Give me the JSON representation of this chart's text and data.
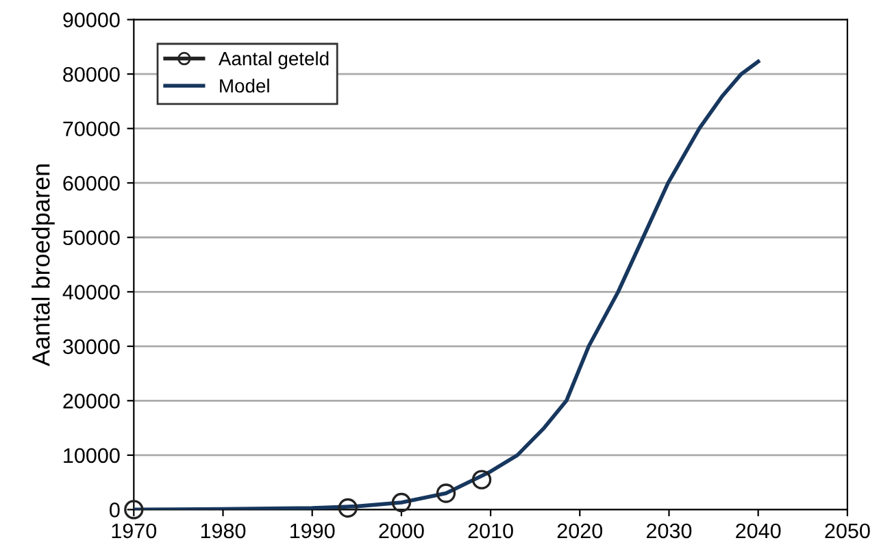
{
  "chart_data": {
    "type": "line",
    "ylabel": "Aantal broedparen",
    "xlim": [
      1970,
      2050
    ],
    "xticks": [
      1970,
      1980,
      1990,
      2000,
      2010,
      2020,
      2030,
      2040,
      2050
    ],
    "ylim": [
      0,
      90000
    ],
    "yticks": [
      0,
      10000,
      20000,
      30000,
      40000,
      50000,
      60000,
      70000,
      80000,
      90000
    ],
    "grid": "y",
    "legend": "top left",
    "series": [
      {
        "name": "Aantal geteld",
        "type": "scatter",
        "color": "#222222",
        "marker": "circle",
        "x": [
          1970,
          1994,
          2000,
          2005,
          2009
        ],
        "values": [
          0,
          300,
          1300,
          3000,
          5500
        ]
      },
      {
        "name": "Model",
        "color": "#17375e",
        "marker": "none",
        "x": [
          1970,
          1980,
          1990,
          1995,
          2000,
          2005,
          2010,
          2013,
          2016,
          2018.5,
          2021,
          2024.3,
          2027.1,
          2029.9,
          2033.4,
          2036,
          2038.1,
          2040
        ],
        "values": [
          0,
          100,
          300,
          600,
          1300,
          3000,
          7000,
          10000,
          15000,
          20000,
          30000,
          40000,
          50000,
          60000,
          70000,
          76000,
          80000,
          82300
        ]
      }
    ]
  }
}
